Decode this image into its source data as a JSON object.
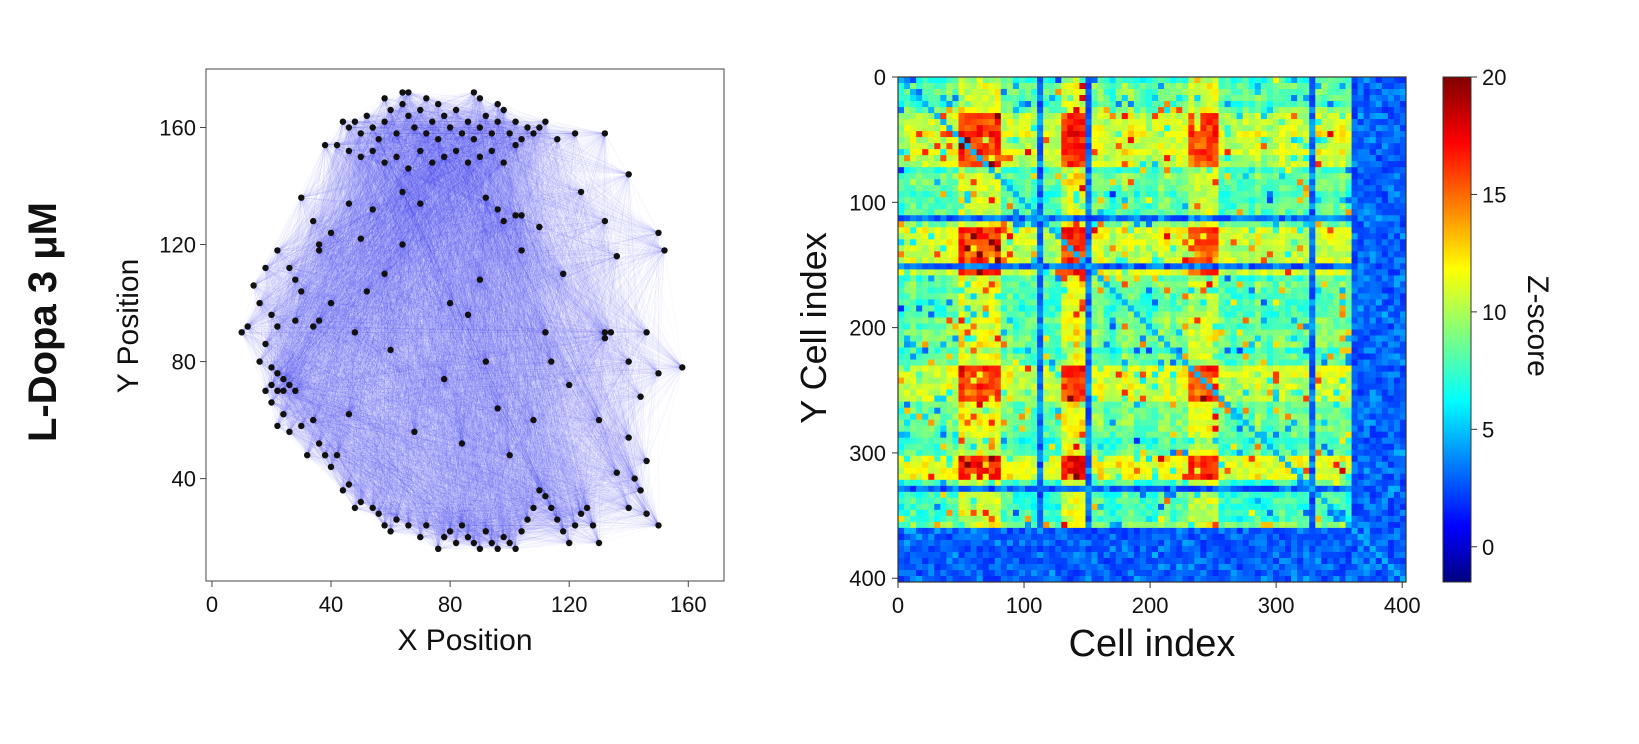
{
  "figure_label": "L-Dopa 3 μM",
  "chart_data": [
    {
      "type": "scatter",
      "title": "",
      "xlabel": "X Position",
      "ylabel": "Y Position",
      "xlim": [
        -2,
        172
      ],
      "ylim": [
        5,
        180
      ],
      "xticks": [
        0,
        40,
        80,
        120,
        160
      ],
      "yticks": [
        40,
        80,
        120,
        160
      ],
      "grid": false,
      "edges": "all-to-all functional connections drawn as faint blue lines between nodes",
      "edge_color": "#2a2af0",
      "node_color": "#111111",
      "points": [
        [
          44,
          162
        ],
        [
          46,
          160
        ],
        [
          48,
          162
        ],
        [
          50,
          158
        ],
        [
          52,
          164
        ],
        [
          54,
          160
        ],
        [
          56,
          156
        ],
        [
          58,
          162
        ],
        [
          60,
          166
        ],
        [
          62,
          158
        ],
        [
          64,
          168
        ],
        [
          66,
          164
        ],
        [
          68,
          160
        ],
        [
          70,
          166
        ],
        [
          72,
          158
        ],
        [
          74,
          162
        ],
        [
          76,
          156
        ],
        [
          78,
          164
        ],
        [
          80,
          160
        ],
        [
          82,
          166
        ],
        [
          84,
          158
        ],
        [
          86,
          162
        ],
        [
          88,
          156
        ],
        [
          90,
          160
        ],
        [
          92,
          164
        ],
        [
          94,
          158
        ],
        [
          96,
          162
        ],
        [
          98,
          166
        ],
        [
          100,
          158
        ],
        [
          102,
          162
        ],
        [
          104,
          156
        ],
        [
          106,
          160
        ],
        [
          108,
          158
        ],
        [
          110,
          160
        ],
        [
          112,
          162
        ],
        [
          38,
          154
        ],
        [
          42,
          154
        ],
        [
          46,
          152
        ],
        [
          50,
          150
        ],
        [
          54,
          152
        ],
        [
          58,
          148
        ],
        [
          62,
          150
        ],
        [
          66,
          146
        ],
        [
          70,
          152
        ],
        [
          74,
          148
        ],
        [
          78,
          150
        ],
        [
          82,
          152
        ],
        [
          86,
          148
        ],
        [
          90,
          150
        ],
        [
          94,
          152
        ],
        [
          98,
          148
        ],
        [
          102,
          154
        ],
        [
          58,
          170
        ],
        [
          64,
          172
        ],
        [
          66,
          172
        ],
        [
          72,
          170
        ],
        [
          76,
          168
        ],
        [
          88,
          172
        ],
        [
          90,
          170
        ],
        [
          96,
          168
        ],
        [
          116,
          156
        ],
        [
          122,
          158
        ],
        [
          132,
          158
        ],
        [
          140,
          144
        ],
        [
          64,
          138
        ],
        [
          92,
          136
        ],
        [
          96,
          132
        ],
        [
          98,
          128
        ],
        [
          102,
          130
        ],
        [
          104,
          130
        ],
        [
          110,
          126
        ],
        [
          54,
          132
        ],
        [
          46,
          134
        ],
        [
          50,
          122
        ],
        [
          30,
          136
        ],
        [
          34,
          128
        ],
        [
          40,
          124
        ],
        [
          36,
          118
        ],
        [
          132,
          128
        ],
        [
          150,
          124
        ],
        [
          152,
          118
        ],
        [
          136,
          116
        ],
        [
          22,
          118
        ],
        [
          18,
          112
        ],
        [
          26,
          112
        ],
        [
          28,
          108
        ],
        [
          14,
          106
        ],
        [
          30,
          104
        ],
        [
          16,
          100
        ],
        [
          20,
          96
        ],
        [
          22,
          92
        ],
        [
          28,
          94
        ],
        [
          34,
          92
        ],
        [
          36,
          94
        ],
        [
          40,
          100
        ],
        [
          12,
          92
        ],
        [
          10,
          90
        ],
        [
          18,
          86
        ],
        [
          16,
          80
        ],
        [
          20,
          78
        ],
        [
          22,
          76
        ],
        [
          24,
          74
        ],
        [
          26,
          72
        ],
        [
          20,
          72
        ],
        [
          18,
          70
        ],
        [
          22,
          70
        ],
        [
          24,
          70
        ],
        [
          20,
          66
        ],
        [
          28,
          70
        ],
        [
          24,
          62
        ],
        [
          26,
          56
        ],
        [
          30,
          58
        ],
        [
          22,
          58
        ],
        [
          34,
          60
        ],
        [
          36,
          52
        ],
        [
          32,
          48
        ],
        [
          38,
          48
        ],
        [
          40,
          44
        ],
        [
          42,
          48
        ],
        [
          44,
          36
        ],
        [
          46,
          38
        ],
        [
          48,
          30
        ],
        [
          50,
          32
        ],
        [
          54,
          30
        ],
        [
          56,
          28
        ],
        [
          58,
          24
        ],
        [
          60,
          22
        ],
        [
          62,
          26
        ],
        [
          66,
          24
        ],
        [
          70,
          20
        ],
        [
          72,
          24
        ],
        [
          76,
          16
        ],
        [
          78,
          20
        ],
        [
          80,
          22
        ],
        [
          82,
          18
        ],
        [
          84,
          24
        ],
        [
          86,
          20
        ],
        [
          88,
          18
        ],
        [
          90,
          16
        ],
        [
          92,
          22
        ],
        [
          94,
          18
        ],
        [
          96,
          16
        ],
        [
          98,
          20
        ],
        [
          100,
          18
        ],
        [
          102,
          16
        ],
        [
          104,
          22
        ],
        [
          106,
          26
        ],
        [
          108,
          30
        ],
        [
          110,
          36
        ],
        [
          112,
          34
        ],
        [
          114,
          30
        ],
        [
          116,
          26
        ],
        [
          118,
          22
        ],
        [
          120,
          18
        ],
        [
          122,
          24
        ],
        [
          124,
          28
        ],
        [
          126,
          30
        ],
        [
          128,
          24
        ],
        [
          130,
          18
        ],
        [
          132,
          88
        ],
        [
          134,
          90
        ],
        [
          132,
          90
        ],
        [
          146,
          90
        ],
        [
          150,
          76
        ],
        [
          158,
          78
        ],
        [
          140,
          80
        ],
        [
          144,
          68
        ],
        [
          130,
          60
        ],
        [
          140,
          54
        ],
        [
          146,
          46
        ],
        [
          142,
          40
        ],
        [
          136,
          42
        ],
        [
          144,
          36
        ],
        [
          140,
          30
        ],
        [
          146,
          28
        ],
        [
          150,
          24
        ],
        [
          52,
          104
        ],
        [
          58,
          110
        ],
        [
          64,
          120
        ],
        [
          70,
          134
        ],
        [
          80,
          100
        ],
        [
          86,
          96
        ],
        [
          92,
          80
        ],
        [
          78,
          74
        ],
        [
          60,
          84
        ],
        [
          48,
          90
        ],
        [
          46,
          62
        ],
        [
          68,
          56
        ],
        [
          84,
          52
        ],
        [
          100,
          48
        ],
        [
          108,
          60
        ],
        [
          120,
          72
        ],
        [
          112,
          90
        ],
        [
          118,
          110
        ],
        [
          124,
          138
        ],
        [
          36,
          120
        ],
        [
          90,
          108
        ],
        [
          104,
          118
        ],
        [
          114,
          80
        ],
        [
          96,
          64
        ]
      ]
    },
    {
      "type": "heatmap",
      "title": "",
      "xlabel": "Cell index",
      "ylabel": "Y Cell index",
      "xlim": [
        0,
        403
      ],
      "ylim": [
        403,
        0
      ],
      "xticks": [
        0,
        100,
        200,
        300,
        400
      ],
      "yticks": [
        0,
        100,
        200,
        300,
        400
      ],
      "n_cells": 403,
      "colorbar": {
        "label": "Z-score",
        "range": [
          -1.5,
          20
        ],
        "ticks": [
          0,
          5,
          10,
          15,
          20
        ],
        "colormap": "jet"
      },
      "block_structure": {
        "high_rows": [
          [
            30,
            70
          ],
          [
            120,
            160
          ],
          [
            230,
            260
          ],
          [
            300,
            320
          ]
        ],
        "high_cols": [
          [
            50,
            80
          ],
          [
            130,
            150
          ],
          [
            230,
            255
          ]
        ],
        "low_bands": [
          [
            110,
            113
          ],
          [
            150,
            153
          ],
          [
            325,
            330
          ],
          [
            360,
            403
          ]
        ]
      }
    }
  ]
}
